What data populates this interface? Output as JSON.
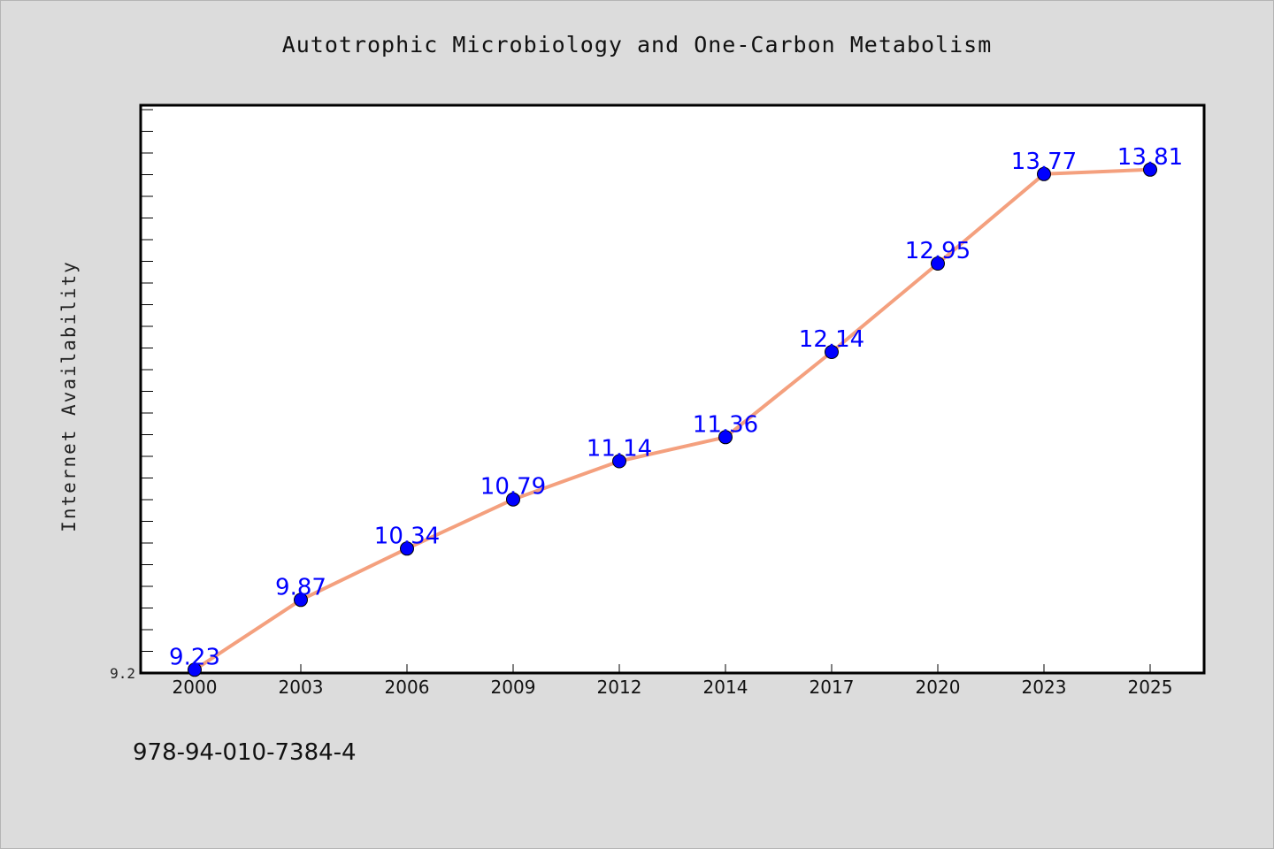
{
  "chart_data": {
    "type": "line",
    "title": "Autotrophic Microbiology and One-Carbon Metabolism",
    "xlabel": "",
    "ylabel": "Internet Availability",
    "categories": [
      "2000",
      "2003",
      "2006",
      "2009",
      "2012",
      "2014",
      "2017",
      "2020",
      "2023",
      "2025"
    ],
    "series": [
      {
        "values": [
          9.23,
          9.87,
          10.34,
          10.79,
          11.14,
          11.36,
          12.14,
          12.95,
          13.77,
          13.81
        ],
        "data_labels": [
          "9.23",
          "9.87",
          "10.34",
          "10.79",
          "11.14",
          "11.36",
          "12.14",
          "12.95",
          "13.77",
          "13.81"
        ]
      }
    ],
    "y_tick_labels": [
      "9.2"
    ],
    "ylim": [
      9.2,
      14.4
    ],
    "grid": false,
    "legend": "none",
    "colors": {
      "line": "#f4a07e",
      "marker": "#0000ff",
      "data_label": "#0000ff",
      "plot_background": "#ffffff",
      "page_background": "#dcdcdc"
    }
  },
  "footer": {
    "isbn": "978-94-010-7384-4"
  }
}
